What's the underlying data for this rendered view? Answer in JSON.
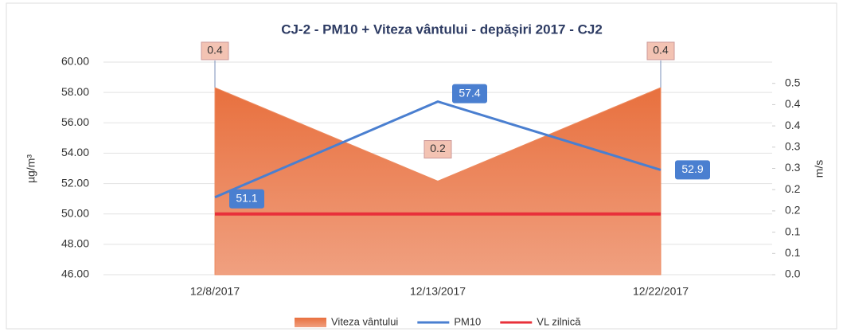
{
  "chart_data": {
    "type": "combo",
    "title": "CJ-2 - PM10 + Viteza vântului - depășiri 2017 - CJ2",
    "categories": [
      "12/8/2017",
      "12/13/2017",
      "12/22/2017"
    ],
    "series": [
      {
        "name": "Viteza vântului",
        "kind": "area",
        "axis": "y2",
        "color": "#ec8a5f",
        "values": [
          0.44,
          0.22,
          0.44
        ],
        "value_labels": [
          "0.4",
          "0.2",
          "0.4"
        ]
      },
      {
        "name": "PM10",
        "kind": "line",
        "color": "#4a7fd0",
        "values": [
          51.1,
          57.4,
          52.9
        ]
      },
      {
        "name": "VL zilnică",
        "kind": "line",
        "color": "#e8303a",
        "values": [
          50,
          50,
          50
        ]
      }
    ],
    "ylabel": "µg/m³",
    "y2label": "m/s",
    "ylim": [
      46,
      60
    ],
    "yticks": [
      {
        "value": 46,
        "label": "46.00"
      },
      {
        "value": 48,
        "label": "48.00"
      },
      {
        "value": 50,
        "label": "50.00"
      },
      {
        "value": 52,
        "label": "52.00"
      },
      {
        "value": 54,
        "label": "54.00"
      },
      {
        "value": 56,
        "label": "56.00"
      },
      {
        "value": 58,
        "label": "58.00"
      },
      {
        "value": 60,
        "label": "60.00"
      }
    ],
    "y2lim": [
      0,
      0.5
    ],
    "y2ticks": [
      {
        "value": 0,
        "label": "0.0"
      },
      {
        "value": 0.05,
        "label": "0.1"
      },
      {
        "value": 0.1,
        "label": "0.1"
      },
      {
        "value": 0.15,
        "label": "0.2"
      },
      {
        "value": 0.2,
        "label": "0.2"
      },
      {
        "value": 0.25,
        "label": "0.3"
      },
      {
        "value": 0.3,
        "label": "0.3"
      },
      {
        "value": 0.35,
        "label": "0.4"
      },
      {
        "value": 0.4,
        "label": "0.4"
      },
      {
        "value": 0.45,
        "label": "0.5"
      }
    ],
    "grid": true,
    "legend": "bottom"
  }
}
